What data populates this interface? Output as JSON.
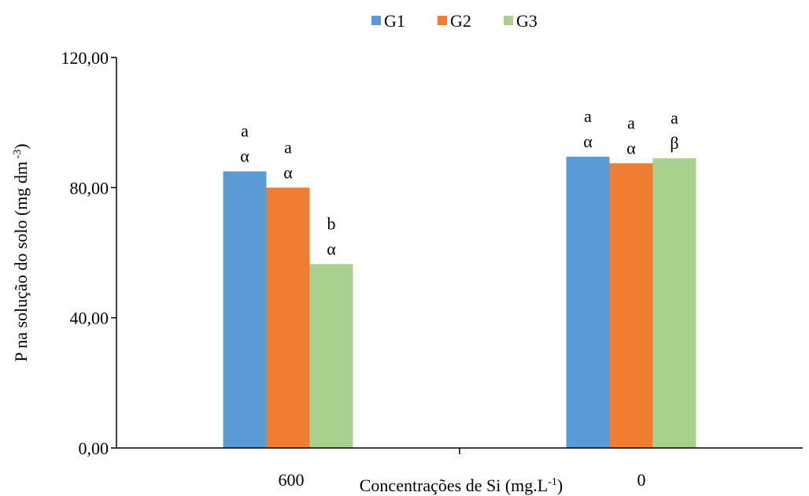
{
  "chart_data": {
    "type": "bar",
    "categories": [
      "600",
      "0"
    ],
    "series": [
      {
        "name": "G1",
        "color": "#5B9BD5",
        "values": [
          85,
          89.5
        ]
      },
      {
        "name": "G2",
        "color": "#ED7D31",
        "values": [
          80,
          87.5
        ]
      },
      {
        "name": "G3",
        "color": "#A9D18E",
        "values": [
          56.5,
          89
        ]
      }
    ],
    "annotations": [
      [
        [
          "a",
          "α"
        ],
        [
          "a",
          "α"
        ]
      ],
      [
        [
          "a",
          "α"
        ],
        [
          "a",
          "α"
        ]
      ],
      [
        [
          "b",
          "α"
        ],
        [
          "a",
          "β"
        ]
      ]
    ],
    "xlabel": "Concentrações de Si (mg.L",
    "xlabel_sup": "-1",
    "xlabel_end": ")",
    "ylabel": "P na solução do solo  (mg dm",
    "ylabel_sup": " -3",
    "ylabel_end": ")",
    "ylim": [
      0,
      120
    ],
    "yticks": [
      0,
      40,
      80,
      120
    ],
    "ytick_labels": [
      "0,00",
      "40,00",
      "80,00",
      "120,00"
    ],
    "legend_position": "top-center",
    "grid": false
  }
}
